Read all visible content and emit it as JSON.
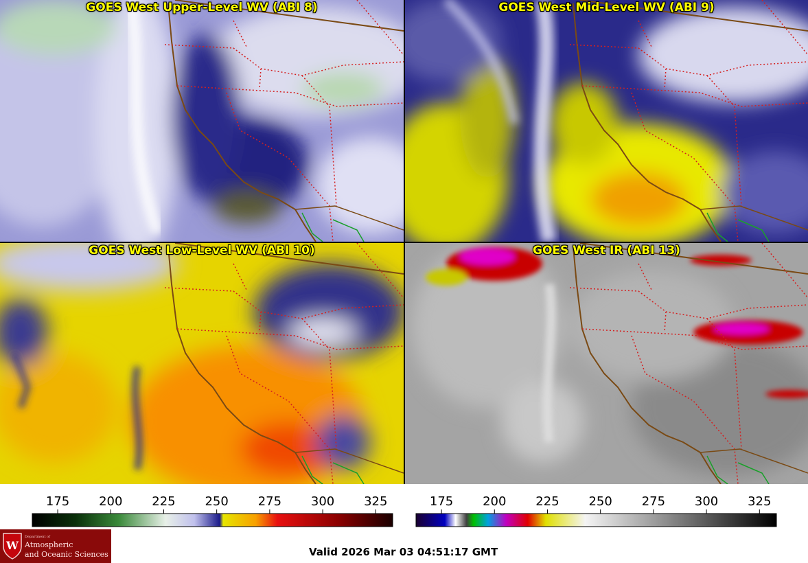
{
  "panels": [
    {
      "title": "GOES West Upper-Level WV (ABI 8)"
    },
    {
      "title": "GOES West Mid-Level WV (ABI 9)"
    },
    {
      "title": "GOES West Low-Level WV (ABI 10)"
    },
    {
      "title": "GOES West IR (ABI 13)"
    }
  ],
  "colorbars": [
    {
      "ticks": [
        "175",
        "200",
        "225",
        "250",
        "275",
        "300",
        "325"
      ],
      "values": [
        175,
        200,
        225,
        250,
        275,
        300,
        325
      ],
      "range": [
        163,
        333
      ],
      "palette": "water-vapor"
    },
    {
      "ticks": [
        "175",
        "200",
        "225",
        "250",
        "275",
        "300",
        "325"
      ],
      "values": [
        175,
        200,
        225,
        250,
        275,
        300,
        325
      ],
      "range": [
        163,
        333
      ],
      "palette": "infrared"
    }
  ],
  "logo": {
    "department": "Department of",
    "line1": "Atmospheric",
    "line2": "and Oceanic Sciences"
  },
  "valid_time": "Valid 2026 Mar 03 04:51:17 GMT",
  "colors": {
    "title_text": "#ffff00",
    "coastline": "#7a4a14",
    "state_lines": "#d42020",
    "border_green": "#1aa02a"
  }
}
